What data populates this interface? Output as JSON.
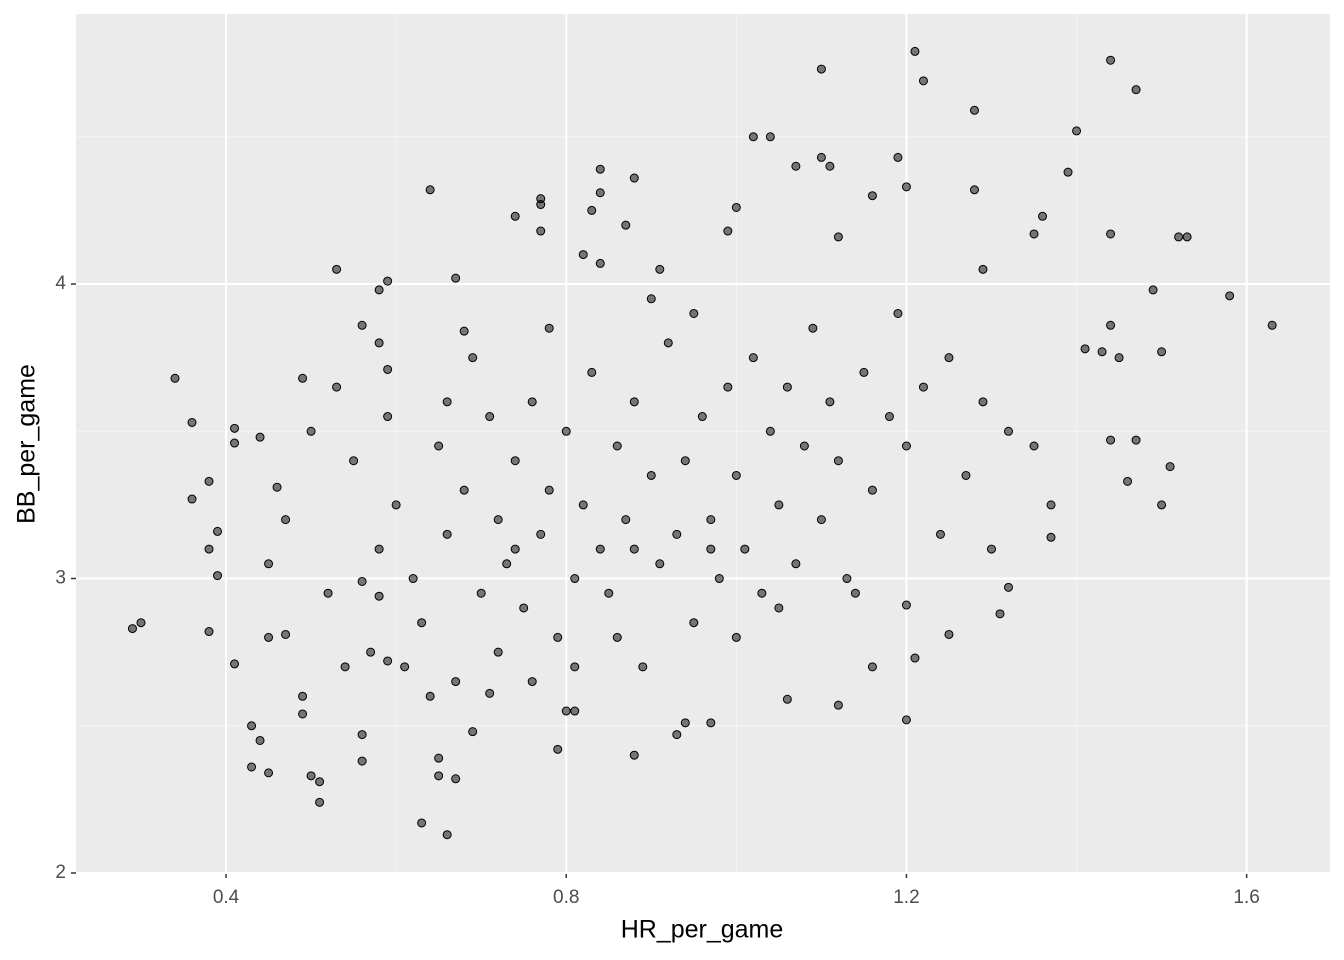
{
  "chart_data": {
    "type": "scatter",
    "xlabel": "HR_per_game",
    "ylabel": "BB_per_game",
    "x": [
      0.29,
      0.3,
      0.34,
      0.36,
      0.36,
      0.38,
      0.38,
      0.38,
      0.39,
      0.39,
      0.41,
      0.41,
      0.41,
      0.43,
      0.43,
      0.44,
      0.45,
      0.44,
      0.46,
      0.45,
      0.47,
      0.49,
      0.49,
      0.49,
      0.5,
      0.51,
      0.51,
      0.53,
      0.56,
      0.56,
      0.56,
      0.56,
      0.58,
      0.59,
      0.58,
      0.59,
      0.58,
      0.59,
      0.64,
      0.63,
      0.66,
      0.65,
      0.65,
      0.67,
      0.67,
      0.68,
      0.69,
      0.71,
      0.74,
      0.77,
      0.77,
      0.77,
      0.79,
      0.8,
      0.81,
      0.82,
      0.83,
      0.84,
      0.84,
      0.84,
      0.87,
      0.88,
      0.88,
      0.91,
      0.93,
      0.94,
      0.97,
      0.99,
      1.0,
      1.02,
      1.04,
      1.07,
      1.1,
      1.1,
      1.11,
      1.12,
      1.06,
      1.12,
      1.16,
      1.16,
      1.19,
      1.2,
      1.2,
      1.2,
      1.21,
      1.21,
      1.22,
      1.25,
      1.28,
      1.28,
      1.29,
      1.31,
      1.32,
      1.35,
      1.36,
      1.37,
      1.39,
      1.4,
      1.41,
      1.43,
      1.44,
      1.44,
      1.44,
      1.45,
      1.46,
      1.47,
      1.47,
      1.49,
      1.5,
      1.5,
      1.51,
      1.52,
      1.53,
      1.58,
      1.63,
      1.44,
      0.55,
      0.58,
      0.6,
      0.62,
      0.63,
      0.65,
      0.66,
      0.68,
      0.7,
      0.71,
      0.72,
      0.73,
      0.74,
      0.75,
      0.76,
      0.77,
      0.78,
      0.79,
      0.8,
      0.81,
      0.82,
      0.83,
      0.84,
      0.85,
      0.86,
      0.87,
      0.88,
      0.89,
      0.9,
      0.91,
      0.92,
      0.93,
      0.94,
      0.95,
      0.96,
      0.97,
      0.98,
      0.99,
      1.0,
      1.01,
      1.02,
      1.03,
      1.04,
      1.05,
      1.06,
      1.07,
      1.08,
      1.09,
      1.1,
      1.11,
      1.12,
      1.13,
      1.15,
      1.16,
      1.18,
      1.19,
      1.2,
      1.22,
      1.24,
      1.25,
      1.27,
      1.29,
      1.3,
      1.32,
      1.35,
      1.37,
      0.45,
      0.47,
      0.5,
      0.52,
      0.53,
      0.54,
      0.57,
      0.59,
      0.61,
      0.64,
      0.67,
      0.69,
      0.72,
      0.76,
      0.78,
      0.81,
      0.86,
      0.9,
      0.95,
      1.0,
      1.05,
      1.14,
      0.66,
      0.74,
      0.88,
      0.97
    ],
    "values": [
      2.83,
      2.85,
      3.68,
      3.53,
      3.27,
      3.33,
      3.1,
      2.82,
      3.16,
      3.01,
      3.51,
      3.46,
      2.71,
      2.5,
      2.36,
      2.45,
      2.34,
      3.48,
      3.31,
      2.8,
      2.81,
      3.68,
      2.6,
      2.54,
      2.33,
      2.31,
      2.24,
      4.05,
      3.86,
      2.99,
      2.47,
      2.38,
      3.98,
      4.01,
      3.8,
      3.71,
      2.94,
      2.72,
      4.32,
      2.17,
      2.13,
      2.33,
      2.39,
      2.32,
      4.02,
      3.84,
      2.48,
      2.61,
      4.23,
      4.27,
      4.29,
      4.18,
      2.42,
      2.55,
      2.55,
      4.1,
      4.25,
      4.39,
      4.31,
      4.07,
      4.2,
      4.36,
      2.4,
      4.05,
      2.47,
      2.51,
      2.51,
      4.18,
      4.26,
      4.5,
      4.5,
      4.4,
      4.73,
      4.43,
      4.4,
      4.16,
      2.59,
      2.57,
      2.7,
      4.3,
      4.43,
      4.33,
      2.91,
      2.52,
      2.73,
      4.79,
      4.69,
      2.81,
      4.59,
      4.32,
      4.05,
      2.88,
      2.97,
      4.17,
      4.23,
      3.14,
      4.38,
      4.52,
      3.78,
      3.77,
      4.76,
      4.17,
      3.86,
      3.75,
      3.33,
      3.47,
      4.66,
      3.98,
      3.77,
      3.25,
      3.38,
      4.16,
      4.16,
      3.96,
      3.86,
      3.47,
      3.4,
      3.1,
      3.25,
      3.0,
      2.85,
      3.45,
      3.15,
      3.3,
      2.95,
      3.55,
      3.2,
      3.05,
      3.4,
      2.9,
      3.6,
      3.15,
      3.3,
      2.8,
      3.5,
      3.0,
      3.25,
      3.7,
      3.1,
      2.95,
      3.45,
      3.2,
      3.6,
      2.7,
      3.35,
      3.05,
      3.8,
      3.15,
      3.4,
      2.85,
      3.55,
      3.2,
      3.0,
      3.65,
      3.35,
      3.1,
      3.75,
      2.95,
      3.5,
      3.25,
      3.65,
      3.05,
      3.45,
      3.85,
      3.2,
      3.6,
      3.4,
      3.0,
      3.7,
      3.3,
      3.55,
      3.9,
      3.45,
      3.65,
      3.15,
      3.75,
      3.35,
      3.6,
      3.1,
      3.5,
      3.45,
      3.25,
      3.05,
      3.2,
      3.5,
      2.95,
      3.65,
      2.7,
      2.75,
      3.55,
      2.7,
      2.6,
      2.65,
      3.75,
      2.75,
      2.65,
      3.85,
      2.7,
      2.8,
      3.95,
      3.9,
      2.8,
      2.9,
      2.95,
      3.6,
      3.1,
      3.1,
      3.1
    ],
    "color": "#000000",
    "alpha": 0.5,
    "xlim": [
      0.2236,
      1.698
    ],
    "ylim": [
      2,
      4.917
    ],
    "xticks": [
      0.4,
      0.8,
      1.2,
      1.6
    ],
    "yticks": [
      2,
      3,
      4
    ],
    "grid": true
  }
}
